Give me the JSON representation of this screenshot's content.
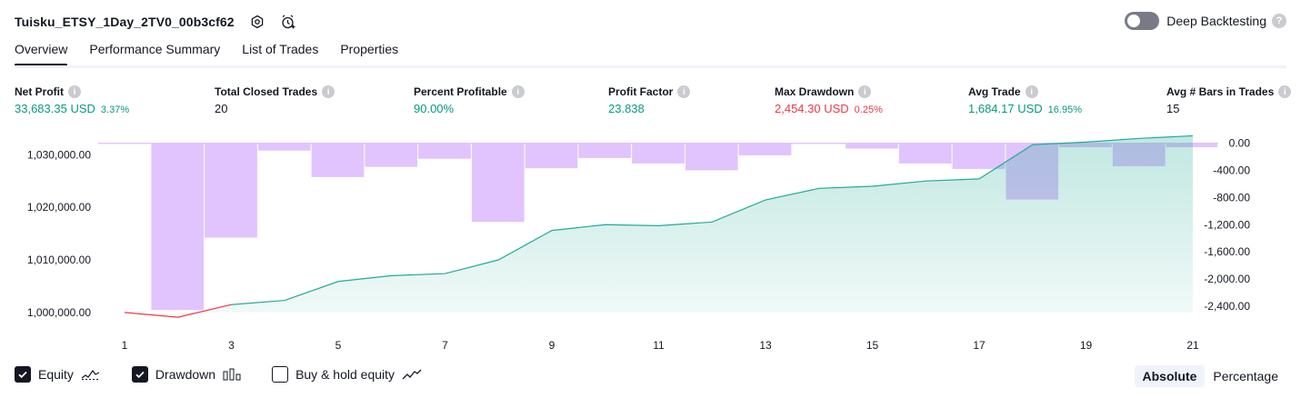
{
  "header": {
    "title": "Tuisku_ETSY_1Day_2TV0_00b3cf62",
    "deep_backtesting_label": "Deep Backtesting"
  },
  "tabs": [
    {
      "label": "Overview"
    },
    {
      "label": "Performance Summary"
    },
    {
      "label": "List of Trades"
    },
    {
      "label": "Properties"
    }
  ],
  "metrics": [
    {
      "label": "Net Profit",
      "value": "33,683.35 USD",
      "pct": "3.37%",
      "color": "green"
    },
    {
      "label": "Total Closed Trades",
      "value": "20",
      "pct": "",
      "color": "black"
    },
    {
      "label": "Percent Profitable",
      "value": "90.00%",
      "pct": "",
      "color": "green"
    },
    {
      "label": "Profit Factor",
      "value": "23.838",
      "pct": "",
      "color": "green"
    },
    {
      "label": "Max Drawdown",
      "value": "2,454.30 USD",
      "pct": "0.25%",
      "color": "red"
    },
    {
      "label": "Avg Trade",
      "value": "1,684.17 USD",
      "pct": "16.95%",
      "color": "green"
    },
    {
      "label": "Avg # Bars in Trades",
      "value": "15",
      "pct": "",
      "color": "black"
    }
  ],
  "chart_data": {
    "type": "area",
    "x_ticks": [
      "1",
      "3",
      "5",
      "7",
      "9",
      "11",
      "13",
      "15",
      "17",
      "19",
      "21"
    ],
    "y_left_ticks": [
      "1,030,000.00",
      "1,020,000.00",
      "1,010,000.00",
      "1,000,000.00"
    ],
    "y_left_tick_values": [
      1030000,
      1020000,
      1010000,
      1000000
    ],
    "y_left_range": [
      998600,
      1033500
    ],
    "y_right_ticks": [
      "0.00",
      "-400.00",
      "-800.00",
      "-1,200.00",
      "-1,600.00",
      "-2,000.00",
      "-2,400.00"
    ],
    "y_right_tick_values": [
      0,
      -400,
      -800,
      -1200,
      -1600,
      -2000,
      -2400
    ],
    "y_right_range": [
      -2600,
      100
    ],
    "x_range": [
      1,
      21
    ],
    "series": [
      {
        "name": "Equity",
        "type": "area",
        "x": [
          1,
          2,
          3,
          4,
          5,
          6,
          7,
          8,
          9,
          10,
          11,
          12,
          13,
          14,
          15,
          16,
          17,
          18,
          19,
          20,
          21
        ],
        "values": [
          1000000,
          999100,
          1001500,
          1002300,
          1005900,
          1007000,
          1007400,
          1010000,
          1015600,
          1016700,
          1016500,
          1017200,
          1021400,
          1023600,
          1024000,
          1025000,
          1025400,
          1031900,
          1032400,
          1033100,
          1033600
        ]
      },
      {
        "name": "Drawdown",
        "type": "bar",
        "x": [
          1,
          2,
          3,
          4,
          5,
          6,
          7,
          8,
          9,
          10,
          11,
          12,
          13,
          14,
          15,
          16,
          17,
          18,
          19,
          20,
          21
        ],
        "values": [
          -10,
          -2454,
          -1390,
          -110,
          -500,
          -350,
          -230,
          -1160,
          -370,
          -220,
          -300,
          -400,
          -180,
          -10,
          -80,
          -300,
          -380,
          -830,
          -60,
          -340,
          -60
        ]
      }
    ],
    "colors": {
      "equity_line": "#22ab94",
      "equity_loss_line": "#f23645",
      "drawdown": "#e1c4fd"
    }
  },
  "legend": {
    "items": [
      {
        "label": "Equity",
        "checked": true
      },
      {
        "label": "Drawdown",
        "checked": true
      },
      {
        "label": "Buy & hold equity",
        "checked": false
      }
    ]
  },
  "modes": {
    "absolute": "Absolute",
    "percentage": "Percentage"
  }
}
